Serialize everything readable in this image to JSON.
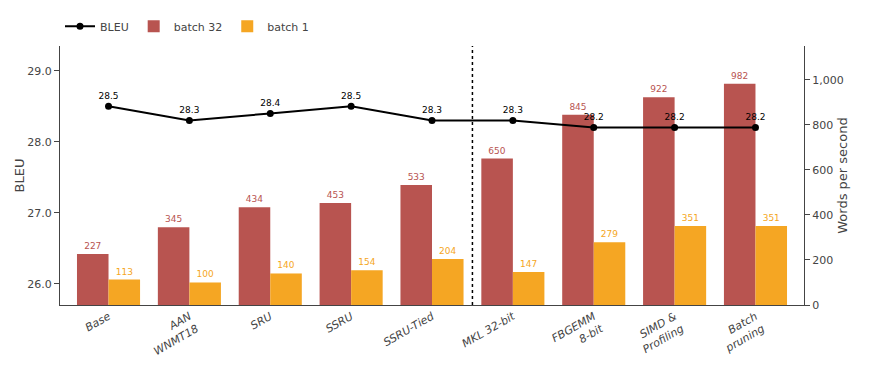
{
  "chart_data": {
    "type": "bar",
    "categories": [
      "Base",
      "AAN\nWNMT18",
      "SRU",
      "SSRU",
      "SSRU-Tied",
      "MKL 32-bit",
      "FBGEMM\n8-bit",
      "SIMD &\nProfiling",
      "Batch\npruning"
    ],
    "series": [
      {
        "name": "BLEU",
        "type": "line",
        "color": "#000000",
        "marker": "circle",
        "axis": "y",
        "values": [
          28.5,
          28.3,
          28.4,
          28.5,
          28.3,
          28.3,
          28.2,
          28.2,
          28.2
        ]
      },
      {
        "name": "batch 32",
        "type": "bar",
        "color": "#B85450",
        "axis": "y2",
        "values": [
          227,
          345,
          434,
          453,
          533,
          650,
          845,
          922,
          982
        ]
      },
      {
        "name": "batch 1",
        "type": "bar",
        "color": "#F5A623",
        "axis": "y2",
        "values": [
          113,
          100,
          140,
          154,
          204,
          147,
          279,
          351,
          351
        ]
      }
    ],
    "ylabel": "BLEU",
    "y2label": "Words per second",
    "ylim": [
      25.7,
      29.35
    ],
    "yticks": [
      {
        "value": 26.0,
        "label": "26.0"
      },
      {
        "value": 27.0,
        "label": "27.0"
      },
      {
        "value": 28.0,
        "label": "28.0"
      },
      {
        "value": 29.0,
        "label": "29.0"
      }
    ],
    "y2lim": [
      0,
      1150
    ],
    "y2ticks": [
      0,
      200,
      400,
      600,
      800,
      {
        "value": 1000,
        "label": "1,000"
      }
    ],
    "vline_x": 4.5,
    "data_labels": true,
    "legend": "upper left",
    "grid": false
  }
}
